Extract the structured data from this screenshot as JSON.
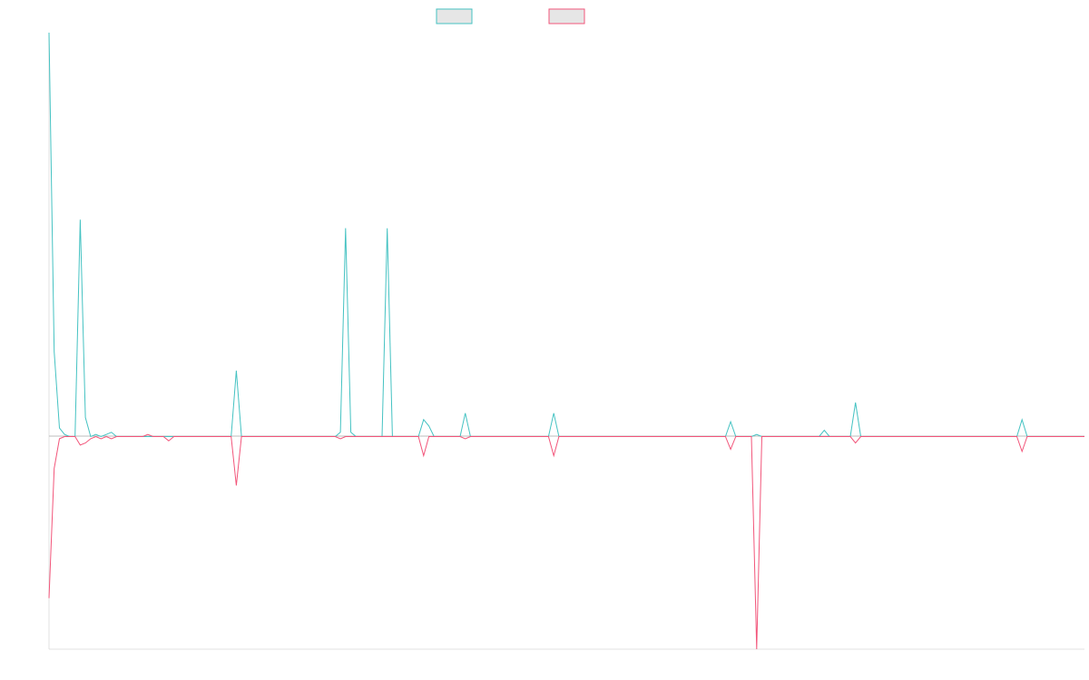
{
  "chart_data": {
    "type": "line",
    "title": "",
    "xlabel": "",
    "ylabel": "",
    "legend_position": "top-center",
    "grid": false,
    "x_range": [
      0,
      199
    ],
    "ylim": [
      -1.0,
      1.9
    ],
    "colors": {
      "up": "#44c2c2",
      "down": "#f2557a"
    },
    "series": [
      {
        "key": "up",
        "color": "#44c2c2",
        "points": [
          [
            0,
            1.9
          ],
          [
            1,
            0.4
          ],
          [
            2,
            0.04
          ],
          [
            3,
            0.01
          ],
          [
            4,
            0
          ],
          [
            5,
            0
          ],
          [
            6,
            1.02
          ],
          [
            7,
            0.09
          ],
          [
            8,
            0
          ],
          [
            9,
            0.01
          ],
          [
            10,
            0
          ],
          [
            11,
            0.01
          ],
          [
            12,
            0.02
          ],
          [
            13,
            0
          ],
          [
            14,
            0
          ],
          [
            15,
            0
          ],
          [
            16,
            0
          ],
          [
            17,
            0
          ],
          [
            18,
            0
          ],
          [
            19,
            0
          ],
          [
            20,
            0
          ],
          [
            21,
            0
          ],
          [
            22,
            0
          ],
          [
            23,
            0
          ],
          [
            24,
            0
          ],
          [
            25,
            0
          ],
          [
            26,
            0
          ],
          [
            27,
            0
          ],
          [
            28,
            0
          ],
          [
            29,
            0
          ],
          [
            30,
            0
          ],
          [
            31,
            0
          ],
          [
            32,
            0
          ],
          [
            33,
            0
          ],
          [
            34,
            0
          ],
          [
            35,
            0
          ],
          [
            36,
            0.31
          ],
          [
            37,
            0
          ],
          [
            38,
            0
          ],
          [
            39,
            0
          ],
          [
            55,
            0
          ],
          [
            56,
            0.02
          ],
          [
            57,
            0.98
          ],
          [
            58,
            0.02
          ],
          [
            59,
            0
          ],
          [
            60,
            0
          ],
          [
            64,
            0
          ],
          [
            65,
            0.98
          ],
          [
            66,
            0
          ],
          [
            70,
            0
          ],
          [
            71,
            0
          ],
          [
            72,
            0.08
          ],
          [
            73,
            0.05
          ],
          [
            74,
            0
          ],
          [
            79,
            0
          ],
          [
            80,
            0.11
          ],
          [
            81,
            0
          ],
          [
            82,
            0
          ],
          [
            96,
            0
          ],
          [
            97,
            0.11
          ],
          [
            98,
            0
          ],
          [
            99,
            0
          ],
          [
            120,
            0
          ],
          [
            121,
            0
          ],
          [
            122,
            0
          ],
          [
            123,
            0
          ],
          [
            124,
            0
          ],
          [
            125,
            0
          ],
          [
            126,
            0
          ],
          [
            127,
            0
          ],
          [
            128,
            0
          ],
          [
            129,
            0
          ],
          [
            130,
            0
          ],
          [
            131,
            0.07
          ],
          [
            132,
            0
          ],
          [
            133,
            0
          ],
          [
            134,
            0
          ],
          [
            135,
            0
          ],
          [
            136,
            0.01
          ],
          [
            137,
            0
          ],
          [
            138,
            0
          ],
          [
            139,
            0
          ],
          [
            145,
            0
          ],
          [
            146,
            0
          ],
          [
            147,
            0
          ],
          [
            148,
            0
          ],
          [
            149,
            0.03
          ],
          [
            150,
            0
          ],
          [
            154,
            0
          ],
          [
            155,
            0.16
          ],
          [
            156,
            0
          ],
          [
            157,
            0
          ],
          [
            186,
            0
          ],
          [
            187,
            0.08
          ],
          [
            188,
            0
          ],
          [
            199,
            0
          ]
        ]
      },
      {
        "key": "down",
        "color": "#f2557a",
        "points": [
          [
            0,
            -0.76
          ],
          [
            1,
            -0.15
          ],
          [
            2,
            -0.01
          ],
          [
            3,
            0
          ],
          [
            4,
            0
          ],
          [
            5,
            0
          ],
          [
            6,
            -0.04
          ],
          [
            7,
            -0.03
          ],
          [
            8,
            -0.01
          ],
          [
            9,
            0
          ],
          [
            10,
            -0.01
          ],
          [
            11,
            0
          ],
          [
            12,
            -0.01
          ],
          [
            13,
            0
          ],
          [
            14,
            0
          ],
          [
            15,
            0
          ],
          [
            16,
            0
          ],
          [
            17,
            0
          ],
          [
            18,
            0
          ],
          [
            19,
            0.01
          ],
          [
            20,
            0
          ],
          [
            21,
            0
          ],
          [
            22,
            0
          ],
          [
            23,
            -0.02
          ],
          [
            24,
            0
          ],
          [
            25,
            0
          ],
          [
            26,
            0
          ],
          [
            27,
            0
          ],
          [
            28,
            0
          ],
          [
            29,
            0
          ],
          [
            30,
            0
          ],
          [
            31,
            0
          ],
          [
            32,
            0
          ],
          [
            33,
            0
          ],
          [
            34,
            0
          ],
          [
            35,
            0
          ],
          [
            36,
            -0.23
          ],
          [
            37,
            0
          ],
          [
            38,
            0
          ],
          [
            39,
            0
          ],
          [
            55,
            0
          ],
          [
            56,
            -0.01
          ],
          [
            57,
            0
          ],
          [
            58,
            0
          ],
          [
            59,
            0
          ],
          [
            60,
            0
          ],
          [
            64,
            0
          ],
          [
            65,
            0
          ],
          [
            66,
            0
          ],
          [
            70,
            0
          ],
          [
            71,
            0
          ],
          [
            72,
            -0.09
          ],
          [
            73,
            0
          ],
          [
            74,
            0
          ],
          [
            79,
            0
          ],
          [
            80,
            -0.01
          ],
          [
            81,
            0
          ],
          [
            82,
            0
          ],
          [
            96,
            0
          ],
          [
            97,
            -0.09
          ],
          [
            98,
            0
          ],
          [
            99,
            0
          ],
          [
            120,
            0
          ],
          [
            121,
            0
          ],
          [
            122,
            0
          ],
          [
            123,
            0
          ],
          [
            124,
            0
          ],
          [
            125,
            0
          ],
          [
            126,
            0
          ],
          [
            127,
            0
          ],
          [
            128,
            0
          ],
          [
            129,
            0
          ],
          [
            130,
            0
          ],
          [
            131,
            -0.06
          ],
          [
            132,
            0
          ],
          [
            133,
            0
          ],
          [
            134,
            0
          ],
          [
            135,
            0
          ],
          [
            136,
            -1.0
          ],
          [
            137,
            0
          ],
          [
            138,
            0
          ],
          [
            139,
            0
          ],
          [
            145,
            0
          ],
          [
            146,
            0
          ],
          [
            147,
            0
          ],
          [
            148,
            0
          ],
          [
            149,
            0
          ],
          [
            150,
            0
          ],
          [
            154,
            0
          ],
          [
            155,
            -0.03
          ],
          [
            156,
            0
          ],
          [
            157,
            0
          ],
          [
            186,
            0
          ],
          [
            187,
            -0.07
          ],
          [
            188,
            0
          ],
          [
            199,
            0
          ]
        ]
      }
    ]
  }
}
